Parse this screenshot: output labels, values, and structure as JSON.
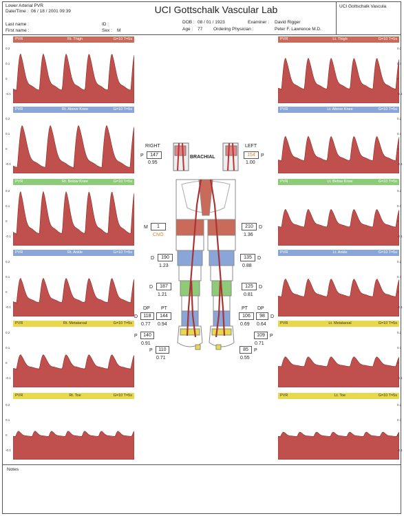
{
  "header": {
    "test_name": "Lower Arterial PVR",
    "datetime_label": "Date/Time :",
    "datetime_value": "06 / 18 / 2001   09:39",
    "title": "UCI Gottschalk Vascular Lab",
    "corner_text": "UCI Gottschalk Vascula",
    "last_name_label": "Last name :",
    "first_name_label": "First name :",
    "id_label": "ID :",
    "sex_label": "Sex :",
    "sex_value": "M",
    "dob_label": "DOB :",
    "dob_value": "08 / 01 / 1923",
    "age_label": "Age :",
    "age_value": "77",
    "examiner_label": "Examiner :",
    "examiner_value": "David Rigger",
    "physician_label": "Ordering Physician :",
    "physician_value": "Peter F. Lawrence M.D."
  },
  "tick_labels": [
    "0.2",
    "0.1",
    "0",
    "-0.1"
  ],
  "left_panels": [
    {
      "pvr": "PVR",
      "site": "Rt. Thigh",
      "gain": "G=10 T=5s",
      "color": "red"
    },
    {
      "pvr": "PVR",
      "site": "Rt. Above Knee",
      "gain": "G=10 T=5s",
      "color": "blue"
    },
    {
      "pvr": "PVR",
      "site": "Rt. Below Knee",
      "gain": "G=10 T=5s",
      "color": "green"
    },
    {
      "pvr": "PVR",
      "site": "Rt. Ankle",
      "gain": "G=10 T=5s",
      "color": "blue"
    },
    {
      "pvr": "PVR",
      "site": "Rt. Metatarsal",
      "gain": "G=10 T=5s",
      "color": "yellow"
    },
    {
      "pvr": "PVR",
      "site": "Rt. Toe",
      "gain": "G=10 T=5s",
      "color": "yellow"
    }
  ],
  "right_panels": [
    {
      "pvr": "PVR",
      "site": "Lt. Thigh",
      "gain": "G=10 T=5s",
      "color": "red"
    },
    {
      "pvr": "PVR",
      "site": "Lt. Above Knee",
      "gain": "G=10 T=5s",
      "color": "blue"
    },
    {
      "pvr": "PVR",
      "site": "Lt. Below Knee",
      "gain": "G=10 T=5s",
      "color": "green"
    },
    {
      "pvr": "PVR",
      "site": "Lt. Ankle",
      "gain": "G=10 T=5s",
      "color": "blue"
    },
    {
      "pvr": "PVR",
      "site": "Lt. Metatarsal",
      "gain": "G=10 T=5s",
      "color": "yellow"
    },
    {
      "pvr": "PVR",
      "site": "Lt. Toe",
      "gain": "G=10 T=5s",
      "color": "yellow"
    }
  ],
  "waveforms": {
    "left": [
      {
        "peaks": 5,
        "amp": 0.82,
        "base": 0.2
      },
      {
        "peaks": 4,
        "amp": 0.95,
        "base": 0.08
      },
      {
        "peaks": 5,
        "amp": 0.95,
        "base": 0.18
      },
      {
        "peaks": 5,
        "amp": 0.55,
        "base": 0.22
      },
      {
        "peaks": 5,
        "amp": 0.32,
        "base": 0.3
      },
      {
        "peaks": 7,
        "amp": 0.12,
        "base": 0.38
      }
    ],
    "right": [
      {
        "peaks": 5,
        "amp": 0.7,
        "base": 0.22
      },
      {
        "peaks": 5,
        "amp": 0.55,
        "base": 0.2
      },
      {
        "peaks": 5,
        "amp": 0.4,
        "base": 0.3
      },
      {
        "peaks": 5,
        "amp": 0.4,
        "base": 0.32
      },
      {
        "peaks": 5,
        "amp": 0.22,
        "base": 0.34
      },
      {
        "peaks": 7,
        "amp": 0.1,
        "base": 0.38
      }
    ]
  },
  "colors": {
    "wave_fill": "#c0504d",
    "red": "#c96a5a",
    "blue": "#8aa6d8",
    "green": "#8ecb78",
    "yellow": "#e8d84c"
  },
  "brachial": {
    "right_label": "RIGHT",
    "left_label": "LEFT",
    "center_label": "BRACHIAL",
    "right_p": "P",
    "right_value": "147",
    "right_index": "0.95",
    "left_p": "P",
    "left_value": "154",
    "left_index": "1.00"
  },
  "pressures": {
    "thigh_r_letter": "M",
    "thigh_r_value": "1",
    "thigh_r_index": "CNO",
    "thigh_l_letter": "D",
    "thigh_l_value": "210",
    "thigh_l_index": "1.36",
    "ak_r_letter": "D",
    "ak_r_value": "190",
    "ak_r_index": "1.23",
    "ak_l_letter": "D",
    "ak_l_value": "135",
    "ak_l_index": "0.88",
    "bk_r_letter": "D",
    "bk_r_value": "187",
    "bk_r_index": "1.21",
    "bk_l_letter": "D",
    "bk_l_value": "125",
    "bk_l_index": "0.81",
    "ankle_r_dp_label": "DP",
    "ankle_r_pt_label": "PT",
    "ankle_r_dp_letter": "D",
    "ankle_r_dp_value": "118",
    "ankle_r_pt_value": "144",
    "ankle_r_dp_index": "0.77",
    "ankle_r_pt_index": "0.94",
    "ankle_l_pt_label": "PT",
    "ankle_l_dp_label": "DP",
    "ankle_l_pt_value": "106",
    "ankle_l_dp_value": "98",
    "ankle_l_dp_letter": "D",
    "ankle_l_pt_index": "0.69",
    "ankle_l_dp_index": "0.64",
    "met_r_letter": "P",
    "met_r_value": "140",
    "met_r_index": "0.91",
    "met_l_letter": "P",
    "met_l_value": "109",
    "met_l_index": "0.71",
    "toe_r_letter": "P",
    "toe_r_value": "110",
    "toe_r_index": "0.71",
    "toe_l_letter": "P",
    "toe_l_value": "85",
    "toe_l_index": "0.55"
  },
  "notes_label": "Notes"
}
